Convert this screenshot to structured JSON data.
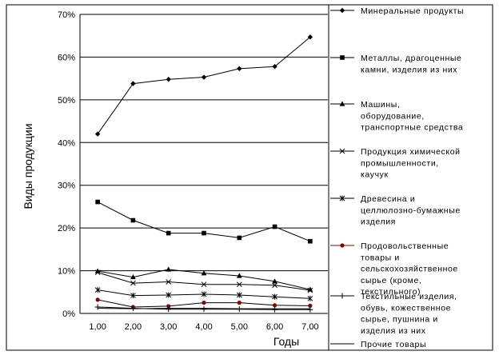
{
  "chart_data": {
    "type": "line",
    "xlabel": "Годы",
    "ylabel": "Виды продукции",
    "x": [
      1,
      2,
      3,
      4,
      5,
      6,
      7
    ],
    "x_tick_labels": [
      "1,00",
      "2,00",
      "3,00",
      "4,00",
      "5,00",
      "6,00",
      "7,00"
    ],
    "y_tick_labels": [
      "0%",
      "10%",
      "20%",
      "30%",
      "40%",
      "50%",
      "60%",
      "70%"
    ],
    "ylim": [
      0,
      70
    ],
    "grid": "horizontal",
    "legend_position": "right",
    "series": [
      {
        "name": "Минеральные продукты",
        "lines": [
          "Минеральные продукты"
        ],
        "marker": "diamond",
        "color": "#000000",
        "values": [
          42.0,
          53.8,
          54.8,
          55.3,
          57.3,
          57.8,
          64.7
        ]
      },
      {
        "name": "Металлы, драгоценные камни, изделия из них",
        "lines": [
          "Металлы, драгоценные",
          "камни, изделия из них"
        ],
        "marker": "square",
        "color": "#000000",
        "values": [
          26.1,
          21.8,
          18.8,
          18.8,
          17.7,
          20.3,
          16.9
        ]
      },
      {
        "name": "Машины, оборудование, транспортные средства",
        "lines": [
          "Машины,",
          "оборудование,",
          "транспортные средства"
        ],
        "marker": "triangle",
        "color": "#000000",
        "values": [
          9.9,
          8.5,
          10.3,
          9.4,
          8.8,
          7.5,
          5.6
        ]
      },
      {
        "name": "Продукция химической промышленности, каучук",
        "lines": [
          "Продукция химической",
          "промышленности,",
          "каучук"
        ],
        "marker": "x",
        "color": "#000000",
        "values": [
          9.6,
          7.1,
          7.4,
          6.8,
          6.8,
          6.6,
          5.4
        ]
      },
      {
        "name": "Древесина и целлюлозно-бумажные изделия",
        "lines": [
          "Древесина и",
          "целлюлозно-бумажные",
          "изделия"
        ],
        "marker": "star",
        "color": "#000000",
        "values": [
          5.5,
          4.2,
          4.3,
          4.5,
          4.3,
          3.9,
          3.5
        ]
      },
      {
        "name": "Продовольственные товары и сельскохозяйственное сырье (кроме, текстильного)",
        "lines": [
          "Продовольственные",
          "товары и",
          "сельскохозяйственное",
          "сырье (кроме,",
          "текстильного)"
        ],
        "marker": "circle",
        "color": "#8b0000",
        "values": [
          3.2,
          1.5,
          1.7,
          2.5,
          2.5,
          1.9,
          1.8
        ]
      },
      {
        "name": "Текстильные изделия, обувь, кожественное сырье, пушнина и изделия из них",
        "lines": [
          "Текстильные изделия,",
          "обувь, кожественное",
          "сырье, пушнина и",
          "изделия из них"
        ],
        "marker": "plus",
        "color": "#000000",
        "values": [
          1.5,
          1.2,
          1.0,
          1.0,
          1.0,
          0.9,
          0.9
        ]
      },
      {
        "name": "Прочие товары",
        "lines": [
          "Прочие товары"
        ],
        "marker": "none",
        "color": "#000000",
        "values": [
          1.2,
          1.1,
          1.2,
          1.2,
          1.1,
          1.1,
          1.1
        ]
      }
    ]
  }
}
